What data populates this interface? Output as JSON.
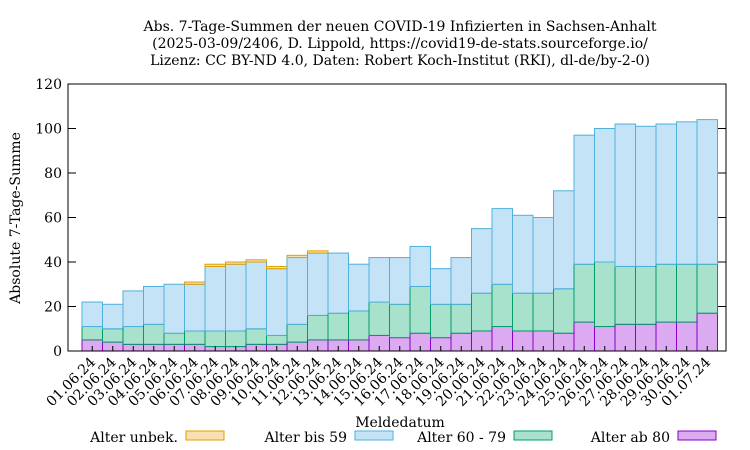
{
  "chart_data": {
    "type": "bar",
    "stacked": true,
    "title_lines": [
      "Abs. 7-Tage-Summen der neuen COVID-19 Infizierten in Sachsen-Anhalt",
      "(2025-03-09/2406, D. Lippold, https://covid19-de-stats.sourceforge.io/",
      "Lizenz: CC BY-ND 4.0, Daten: Robert Koch-Institut (RKI), dl-de/by-2-0)"
    ],
    "xlabel": "Meldedatum",
    "ylabel": "Absolute 7-Tage-Summe",
    "ylim": [
      0,
      120
    ],
    "yticks": [
      0,
      20,
      40,
      60,
      80,
      100,
      120
    ],
    "grid": false,
    "legend_position": "bottom",
    "categories": [
      "01.06.24",
      "02.06.24",
      "03.06.24",
      "04.06.24",
      "05.06.24",
      "06.06.24",
      "07.06.24",
      "08.06.24",
      "09.06.24",
      "10.06.24",
      "11.06.24",
      "12.06.24",
      "13.06.24",
      "14.06.24",
      "15.06.24",
      "16.06.24",
      "17.06.24",
      "18.06.24",
      "19.06.24",
      "20.06.24",
      "21.06.24",
      "22.06.24",
      "23.06.24",
      "24.06.24",
      "25.06.24",
      "26.06.24",
      "27.06.24",
      "28.06.24",
      "29.06.24",
      "30.06.24",
      "01.07.24"
    ],
    "series": [
      {
        "name": "Alter ab 80",
        "fill": "#dcaaf0",
        "stroke": "#8a00c8",
        "values": [
          5,
          4,
          3,
          3,
          3,
          3,
          2,
          2,
          3,
          3,
          4,
          5,
          5,
          5,
          7,
          6,
          8,
          6,
          8,
          9,
          11,
          9,
          9,
          8,
          13,
          11,
          12,
          12,
          13,
          13,
          17
        ]
      },
      {
        "name": "Alter 60 - 79",
        "fill": "#a8e2cc",
        "stroke": "#009c68",
        "values": [
          6,
          6,
          8,
          9,
          5,
          6,
          7,
          7,
          7,
          4,
          8,
          11,
          12,
          13,
          15,
          15,
          21,
          15,
          13,
          17,
          19,
          17,
          17,
          20,
          26,
          29,
          26,
          26,
          26,
          26,
          22
        ]
      },
      {
        "name": "Alter bis 59",
        "fill": "#c4e3f7",
        "stroke": "#50b0dc",
        "values": [
          11,
          11,
          16,
          17,
          22,
          21,
          29,
          30,
          30,
          30,
          30,
          28,
          27,
          21,
          20,
          21,
          18,
          16,
          21,
          29,
          34,
          35,
          34,
          44,
          58,
          60,
          64,
          63,
          63,
          64,
          65
        ]
      },
      {
        "name": "Alter unbek.",
        "fill": "#f8e0b0",
        "stroke": "#e0a000",
        "values": [
          0,
          0,
          0,
          0,
          0,
          1,
          1,
          1,
          1,
          1,
          1,
          1,
          0,
          0,
          0,
          0,
          0,
          0,
          0,
          0,
          0,
          0,
          0,
          0,
          0,
          0,
          0,
          0,
          0,
          0,
          0
        ]
      }
    ],
    "legend_order": [
      "Alter unbek.",
      "Alter bis 59",
      "Alter 60 - 79",
      "Alter ab 80"
    ]
  }
}
